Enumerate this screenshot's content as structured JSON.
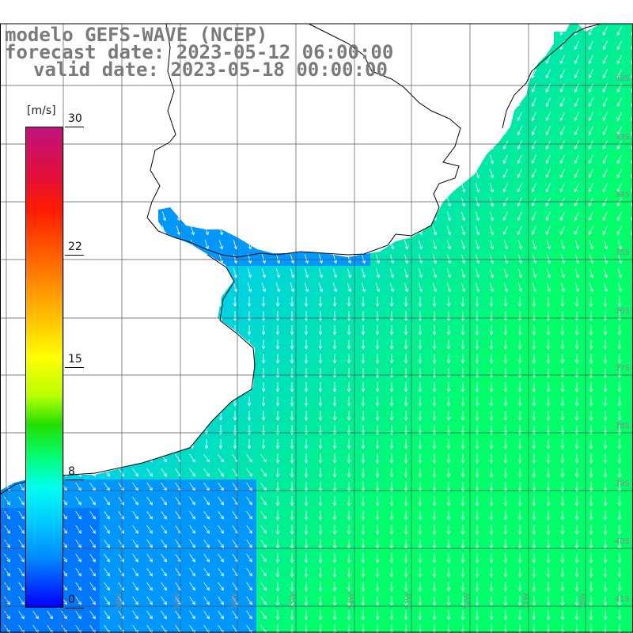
{
  "title": {
    "line1": "modelo GEFS-WAVE (NCEP)",
    "line2": "forecast date: 2023-05-12 06:00:00",
    "line3": "valid date: 2023-05-18 00:00:00"
  },
  "colorbar": {
    "unit": "[m/s]",
    "min": 0,
    "max": 30,
    "ticks": [
      {
        "label": "30",
        "value": 30
      },
      {
        "label": "22",
        "value": 22
      },
      {
        "label": "15",
        "value": 15
      },
      {
        "label": "8",
        "value": 8
      },
      {
        "label": "0",
        "value": 0
      }
    ]
  },
  "lat_labels": [
    "32S",
    "33S",
    "34S",
    "35S",
    "36S",
    "37S",
    "38S",
    "39S",
    "40S",
    "41S"
  ],
  "lon_labels": [
    "59W",
    "58W",
    "57W",
    "56W",
    "55W",
    "54W",
    "53W",
    "52W",
    "51W",
    "50W"
  ],
  "colors": {
    "land": "#ffffff",
    "grid": "#555555",
    "coast": "#000000",
    "arrows": "#ffffff"
  }
}
